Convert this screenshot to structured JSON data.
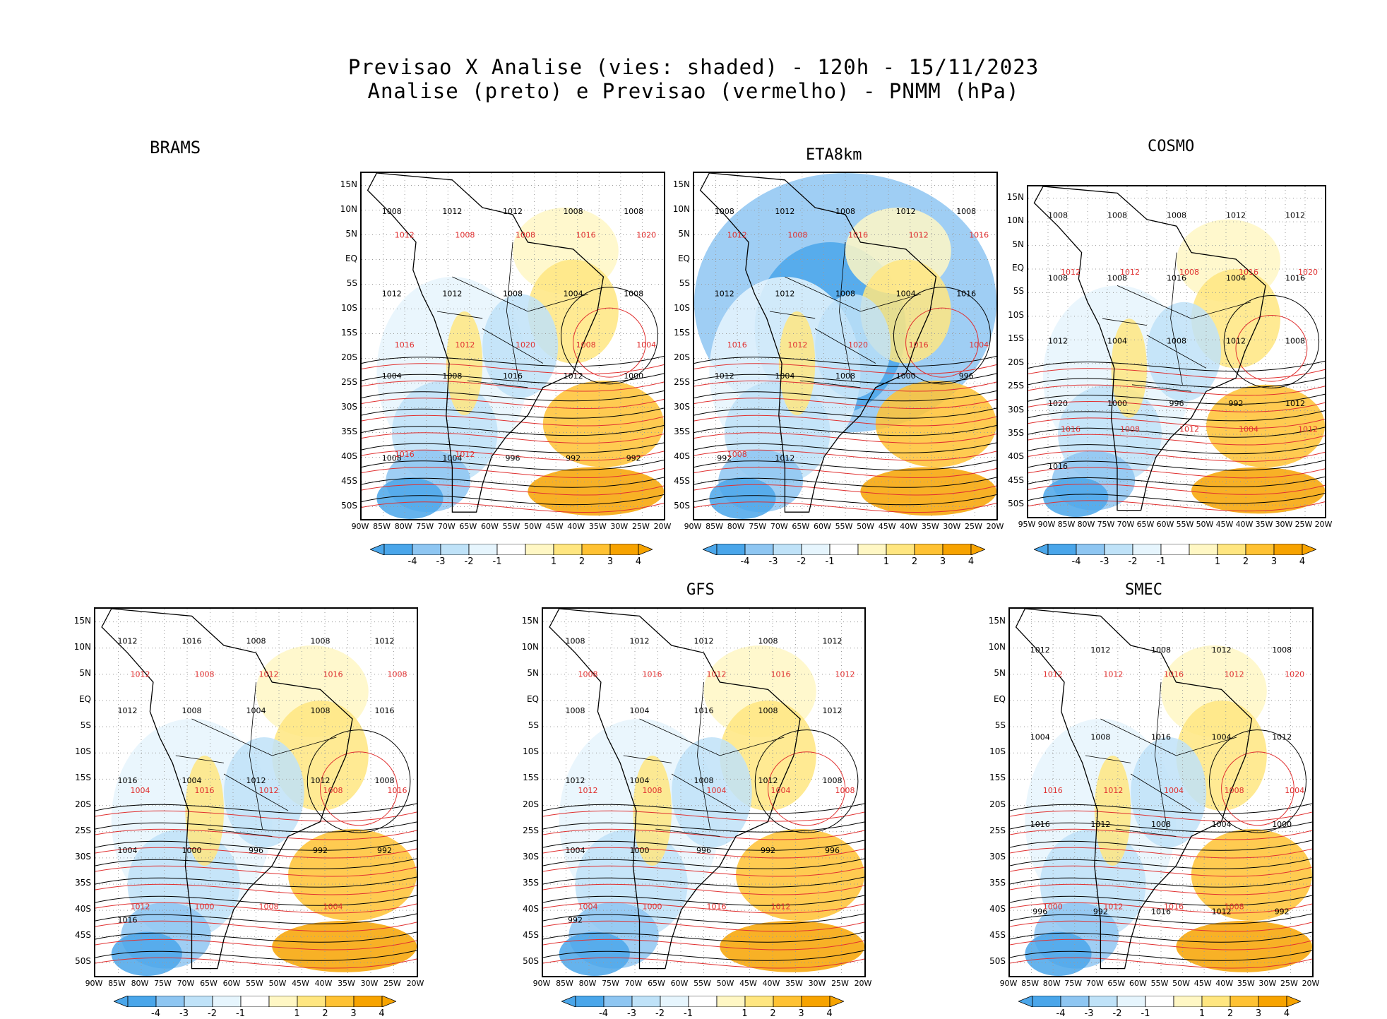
{
  "header": {
    "line1": "Previsao X Analise (vies: shaded) - 120h - 15/11/2023",
    "line2": "Analise (preto) e Previsao (vermelho) - PNMM (hPa)"
  },
  "colors": {
    "neg4": "#4aa6ea",
    "neg3": "#8ec6f2",
    "neg2": "#bfe2f8",
    "neg1": "#e6f5fd",
    "zero": "#ffffff",
    "pos1": "#fff7c4",
    "pos2": "#ffe680",
    "pos3": "#ffc233",
    "pos4": "#f7a300",
    "analysis_line": "#000000",
    "forecast_line": "#e03030",
    "grid": "#9a9a9a"
  },
  "colorbar": {
    "labels": [
      "-4",
      "-3",
      "-2",
      "-1",
      "1",
      "2",
      "3",
      "4"
    ]
  },
  "axes": {
    "lat_labels": [
      "15N",
      "10N",
      "5N",
      "EQ",
      "5S",
      "10S",
      "15S",
      "20S",
      "25S",
      "30S",
      "35S",
      "40S",
      "45S",
      "50S"
    ],
    "lon_labels_default": [
      "90W",
      "85W",
      "80W",
      "75W",
      "70W",
      "65W",
      "60W",
      "55W",
      "50W",
      "45W",
      "40W",
      "35W",
      "30W",
      "25W",
      "20W"
    ],
    "lon_labels_cosmo": [
      "95W",
      "90W",
      "85W",
      "80W",
      "75W",
      "70W",
      "65W",
      "60W",
      "55W",
      "50W",
      "45W",
      "40W",
      "35W",
      "30W",
      "25W",
      "20W"
    ]
  },
  "panels": [
    {
      "id": "brams",
      "title": "BRAMS",
      "analysis_labels": [
        "1008",
        "1012",
        "1012",
        "1008",
        "1008",
        "1012",
        "1012",
        "1008",
        "1004",
        "1008",
        "1004",
        "1008",
        "1016",
        "1012",
        "1000",
        "1008",
        "1004",
        "996",
        "992",
        "992"
      ],
      "forecast_labels": [
        "1012",
        "1008",
        "1008",
        "1016",
        "1020",
        "1016",
        "1012",
        "1020",
        "1008",
        "1004",
        "1016",
        "1012"
      ]
    },
    {
      "id": "eta8km",
      "title": "ETA8km",
      "analysis_labels": [
        "1008",
        "1012",
        "1008",
        "1012",
        "1008",
        "1012",
        "1012",
        "1008",
        "1004",
        "1016",
        "1012",
        "1004",
        "1008",
        "1000",
        "996",
        "992",
        "1012"
      ],
      "forecast_labels": [
        "1012",
        "1008",
        "1016",
        "1012",
        "1016",
        "1016",
        "1012",
        "1020",
        "1016",
        "1004",
        "1008"
      ]
    },
    {
      "id": "cosmo",
      "title": "COSMO",
      "analysis_labels": [
        "1008",
        "1008",
        "1008",
        "1012",
        "1012",
        "1008",
        "1008",
        "1016",
        "1004",
        "1016",
        "1012",
        "1004",
        "1008",
        "1012",
        "1008",
        "1020",
        "1000",
        "996",
        "992",
        "1012",
        "1016"
      ],
      "forecast_labels": [
        "1012",
        "1012",
        "1008",
        "1016",
        "1020",
        "1016",
        "1008",
        "1012",
        "1004",
        "1012"
      ]
    },
    {
      "id": "brams2",
      "title": "",
      "analysis_labels": [
        "1012",
        "1016",
        "1008",
        "1008",
        "1012",
        "1012",
        "1008",
        "1004",
        "1008",
        "1016",
        "1016",
        "1004",
        "1012",
        "1012",
        "1008",
        "1004",
        "1000",
        "996",
        "992",
        "992",
        "1016"
      ],
      "forecast_labels": [
        "1012",
        "1008",
        "1012",
        "1016",
        "1008",
        "1004",
        "1016",
        "1012",
        "1008",
        "1016",
        "1012",
        "1000",
        "1008",
        "1004"
      ]
    },
    {
      "id": "gfs",
      "title": "GFS",
      "analysis_labels": [
        "1008",
        "1012",
        "1012",
        "1008",
        "1012",
        "1008",
        "1004",
        "1016",
        "1008",
        "1012",
        "1012",
        "1004",
        "1008",
        "1012",
        "1008",
        "1004",
        "1000",
        "996",
        "992",
        "996",
        "992"
      ],
      "forecast_labels": [
        "1008",
        "1016",
        "1012",
        "1016",
        "1012",
        "1012",
        "1008",
        "1004",
        "1004",
        "1008",
        "1004",
        "1000",
        "1016",
        "1012"
      ]
    },
    {
      "id": "smec",
      "title": "SMEC",
      "analysis_labels": [
        "1012",
        "1012",
        "1008",
        "1012",
        "1008",
        "1004",
        "1008",
        "1016",
        "1004",
        "1012",
        "1016",
        "1012",
        "1008",
        "1004",
        "1000",
        "996",
        "992",
        "1016",
        "1012",
        "992"
      ],
      "forecast_labels": [
        "1012",
        "1012",
        "1016",
        "1012",
        "1020",
        "1016",
        "1012",
        "1004",
        "1008",
        "1004",
        "1000",
        "1012",
        "1016",
        "1008"
      ]
    }
  ]
}
